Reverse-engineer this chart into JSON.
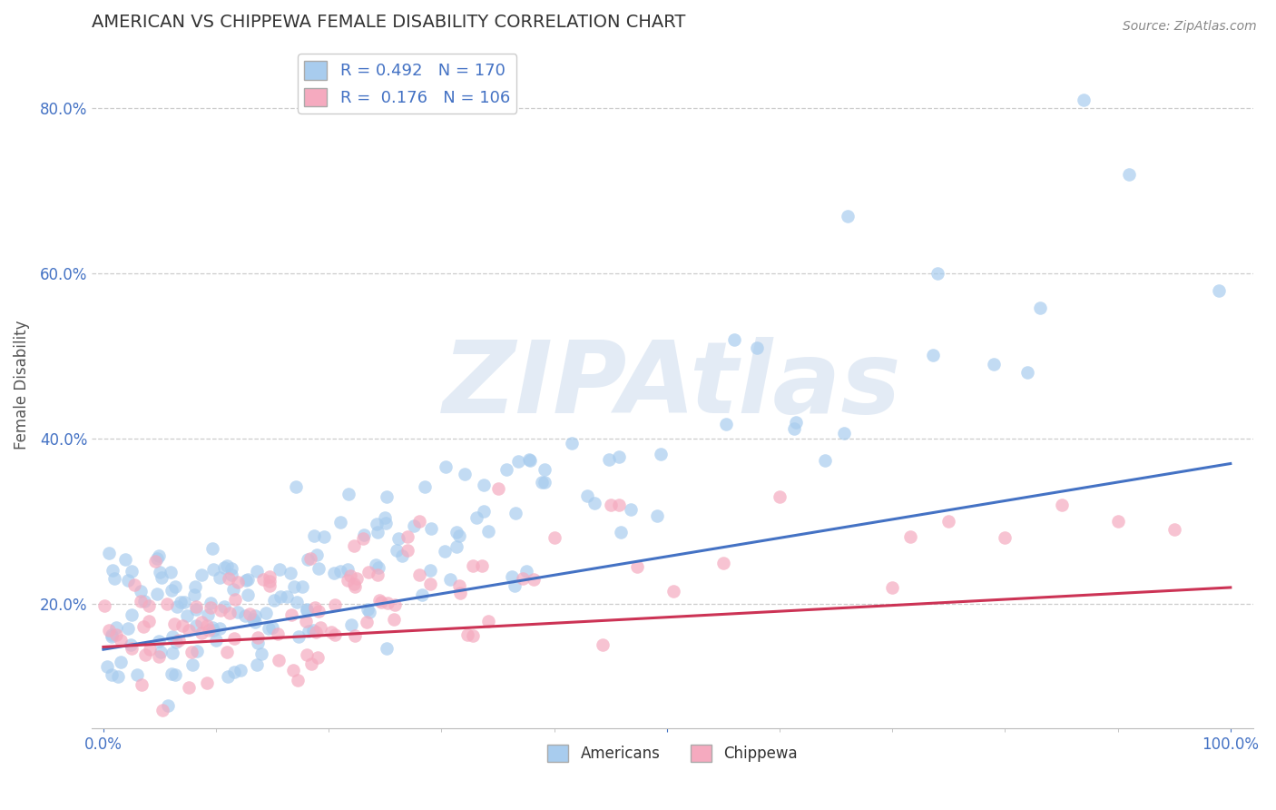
{
  "title": "AMERICAN VS CHIPPEWA FEMALE DISABILITY CORRELATION CHART",
  "source": "Source: ZipAtlas.com",
  "ylabel": "Female Disability",
  "xlabel": "",
  "R_american": 0.492,
  "N_american": 170,
  "R_chippewa": 0.176,
  "N_chippewa": 106,
  "american_color": "#A8CCEE",
  "chippewa_color": "#F5AABF",
  "trend_american_color": "#4472C4",
  "trend_chippewa_color": "#CC3355",
  "xlim": [
    0,
    1
  ],
  "ylim_min": 0.05,
  "ylim_max": 0.88,
  "title_color": "#333333",
  "watermark": "ZIPAtlas",
  "watermark_color": "#C8D8EC",
  "background_color": "#FFFFFF",
  "grid_color": "#CCCCCC",
  "yticks": [
    0.2,
    0.4,
    0.6,
    0.8
  ],
  "legend_color": "#4472C4",
  "source_color": "#888888",
  "tick_label_color": "#4472C4"
}
